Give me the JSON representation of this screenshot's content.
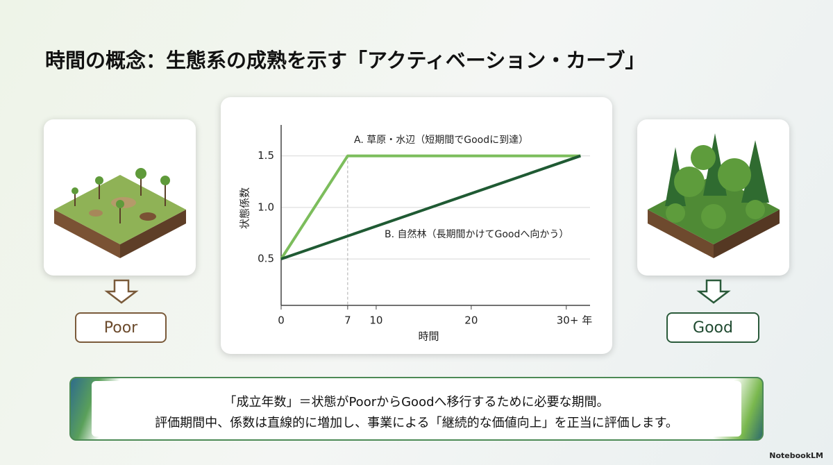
{
  "title": "時間の概念：生態系の成熟を示す「アクティベーション・カーブ」",
  "left_label": "Poor",
  "right_label": "Good",
  "footer": [
    "「成立年数」＝状態がPoorからGoodへ移行するために必要な期間。",
    "評価期間中、係数は直線的に増加し、事業による「継続的な価値向上」を正当に評価します。"
  ],
  "brand": "NotebookLM",
  "chart_data": {
    "type": "line",
    "x_label": "時間",
    "y_label": "状態係数",
    "xlim": [
      0,
      32.5
    ],
    "ylim": [
      0.05,
      1.8
    ],
    "xticks": [
      0,
      7,
      10,
      20,
      {
        "value": 30,
        "label": "30+ 年"
      }
    ],
    "yticks": [
      0.5,
      {
        "value": 1.0,
        "label": "1.0"
      },
      1.5
    ],
    "series": [
      {
        "name": "A. 草原・水辺（短期間でGoodに到達）",
        "color": "#7cbd5c",
        "x": [
          0,
          7,
          31.5
        ],
        "values": [
          0.5,
          1.5,
          1.5
        ]
      },
      {
        "name": "B. 自然林（長期間かけてGoodへ向かう）",
        "color": "#1f5a33",
        "x": [
          0,
          31.5
        ],
        "values": [
          0.5,
          1.5
        ]
      }
    ]
  }
}
